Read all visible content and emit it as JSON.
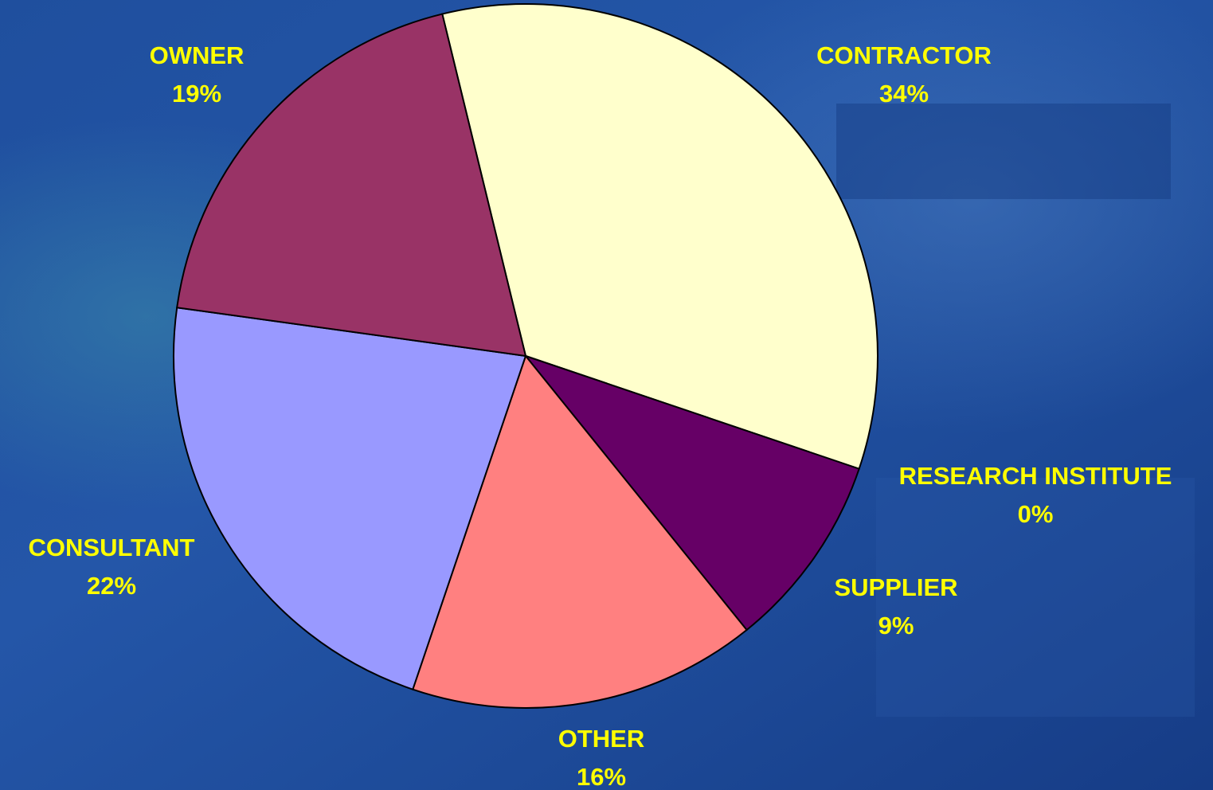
{
  "chart_data": {
    "type": "pie",
    "categories": [
      "CONTRACTOR",
      "RESEARCH INSTITUTE",
      "SUPPLIER",
      "OTHER",
      "CONSULTANT",
      "OWNER"
    ],
    "values": [
      34,
      0,
      9,
      16,
      22,
      19
    ],
    "value_labels": [
      "34%",
      "0%",
      "9%",
      "16%",
      "22%",
      "19%"
    ],
    "colors": [
      "#ffffcc",
      "#3366cc",
      "#660066",
      "#ff8080",
      "#9999ff",
      "#993366"
    ]
  }
}
